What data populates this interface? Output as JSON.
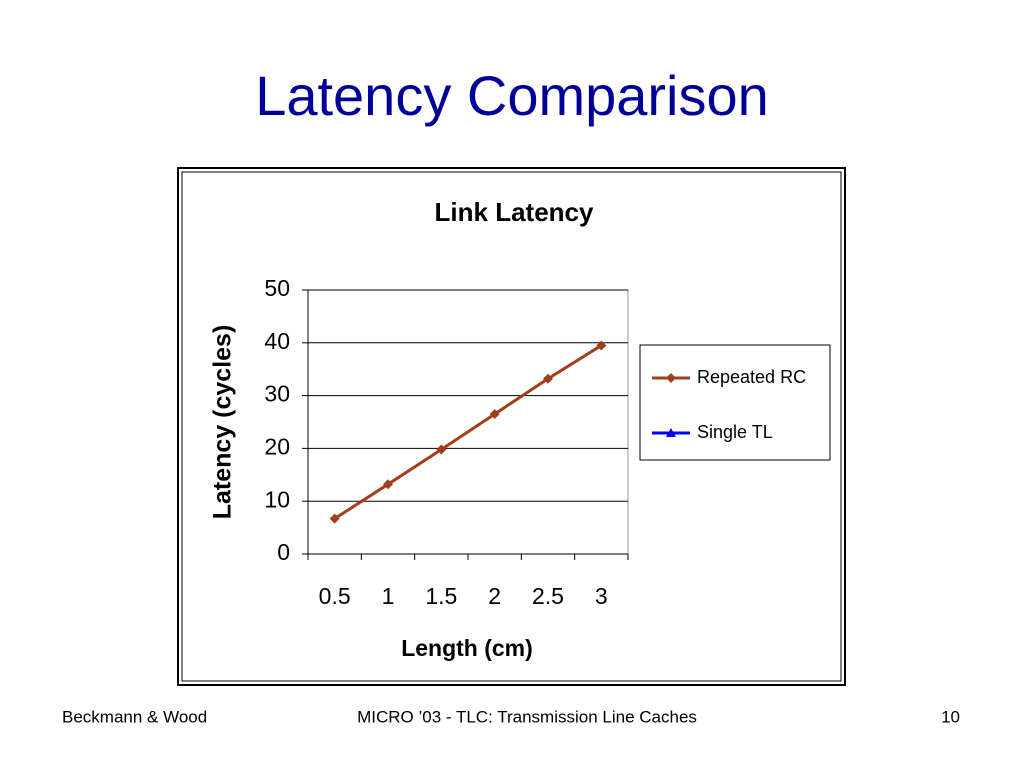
{
  "title": "Latency Comparison",
  "footer": {
    "left": "Beckmann & Wood",
    "center": "MICRO ’03 - TLC: Transmission Line Caches",
    "right": "10"
  },
  "chart_data": {
    "type": "line",
    "title": "Link Latency",
    "x_label": "Length (cm)",
    "y_label": "Latency (cycles)",
    "categories": [
      "0.5",
      "1",
      "1.5",
      "2",
      "2.5",
      "3"
    ],
    "series": [
      {
        "name": "Repeated RC",
        "color": "#a0401a",
        "marker": "diamond",
        "values": [
          6.7,
          13.2,
          19.8,
          26.5,
          33.2,
          39.5
        ]
      },
      {
        "name": "Single TL",
        "color": "#0000ff",
        "marker": "triangle",
        "values": [
          null,
          null,
          null,
          null,
          null,
          null
        ]
      }
    ],
    "ylim": [
      0,
      50
    ],
    "yticks": [
      0,
      10,
      20,
      30,
      40,
      50
    ],
    "grid": true,
    "legend": "right"
  }
}
